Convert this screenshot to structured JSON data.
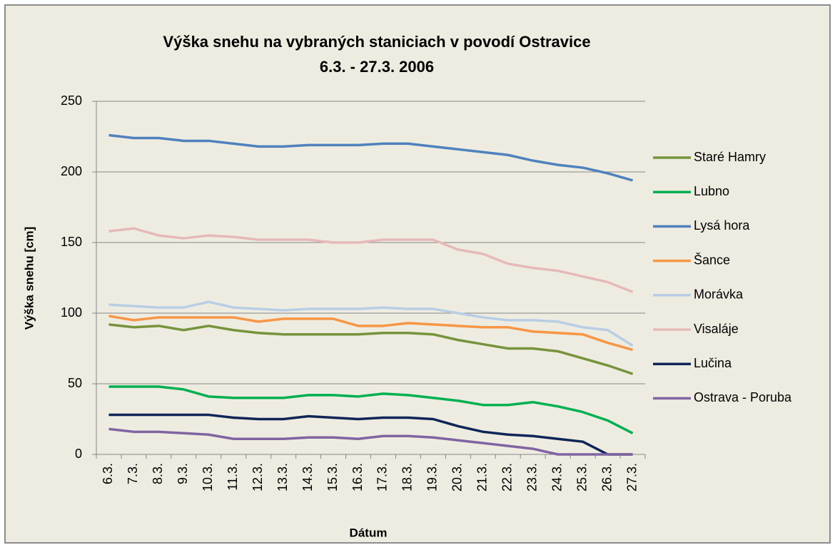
{
  "chart_data": {
    "type": "line",
    "title": "Výška snehu na vybraných staniciach v povodí Ostravice",
    "subtitle": "6.3. - 27.3. 2006",
    "x_label": "Dátum",
    "y_label": "Výška snehu [cm]",
    "categories": [
      "6.3.",
      "7.3.",
      "8.3.",
      "9.3.",
      "10.3.",
      "11.3.",
      "12.3.",
      "13.3.",
      "14.3.",
      "15.3.",
      "16.3.",
      "17.3.",
      "18.3.",
      "19.3.",
      "20.3.",
      "21.3.",
      "22.3.",
      "23.3.",
      "24.3.",
      "25.3.",
      "26.3.",
      "27.3."
    ],
    "ylim": [
      0,
      250
    ],
    "yticks": [
      0,
      50,
      100,
      150,
      200,
      250
    ],
    "grid": true,
    "legend": "right",
    "series": [
      {
        "name": "Staré Hamry",
        "color": "#77933c",
        "values": [
          92,
          90,
          91,
          88,
          91,
          88,
          86,
          85,
          85,
          85,
          85,
          86,
          86,
          85,
          81,
          78,
          75,
          75,
          73,
          68,
          63,
          57
        ]
      },
      {
        "name": "Lubno",
        "color": "#00b050",
        "values": [
          48,
          48,
          48,
          46,
          41,
          40,
          40,
          40,
          42,
          42,
          41,
          43,
          42,
          40,
          38,
          35,
          35,
          37,
          34,
          30,
          24,
          15
        ]
      },
      {
        "name": "Lysá hora",
        "color": "#4f81bd",
        "values": [
          226,
          224,
          224,
          222,
          222,
          220,
          218,
          218,
          219,
          219,
          219,
          220,
          220,
          218,
          216,
          214,
          212,
          208,
          205,
          203,
          199,
          194
        ]
      },
      {
        "name": "Šance",
        "color": "#f79646",
        "values": [
          98,
          95,
          97,
          97,
          97,
          97,
          94,
          96,
          96,
          96,
          91,
          91,
          93,
          92,
          91,
          90,
          90,
          87,
          86,
          85,
          79,
          74
        ]
      },
      {
        "name": "Morávka",
        "color": "#b9cde5",
        "values": [
          106,
          105,
          104,
          104,
          108,
          104,
          103,
          102,
          103,
          103,
          103,
          104,
          103,
          103,
          100,
          97,
          95,
          95,
          94,
          90,
          88,
          77
        ]
      },
      {
        "name": "Visaláje",
        "color": "#e6b9b8",
        "values": [
          158,
          160,
          155,
          153,
          155,
          154,
          152,
          152,
          152,
          150,
          150,
          152,
          152,
          152,
          145,
          142,
          135,
          132,
          130,
          126,
          122,
          115
        ]
      },
      {
        "name": "Lučina",
        "color": "#0f2557",
        "values": [
          28,
          28,
          28,
          28,
          28,
          26,
          25,
          25,
          27,
          26,
          25,
          26,
          26,
          25,
          20,
          16,
          14,
          13,
          11,
          9,
          0,
          0
        ]
      },
      {
        "name": "Ostrava - Poruba",
        "color": "#8064a2",
        "values": [
          18,
          16,
          16,
          15,
          14,
          11,
          11,
          11,
          12,
          12,
          11,
          13,
          13,
          12,
          10,
          8,
          6,
          4,
          0,
          0,
          0,
          0
        ]
      }
    ]
  }
}
